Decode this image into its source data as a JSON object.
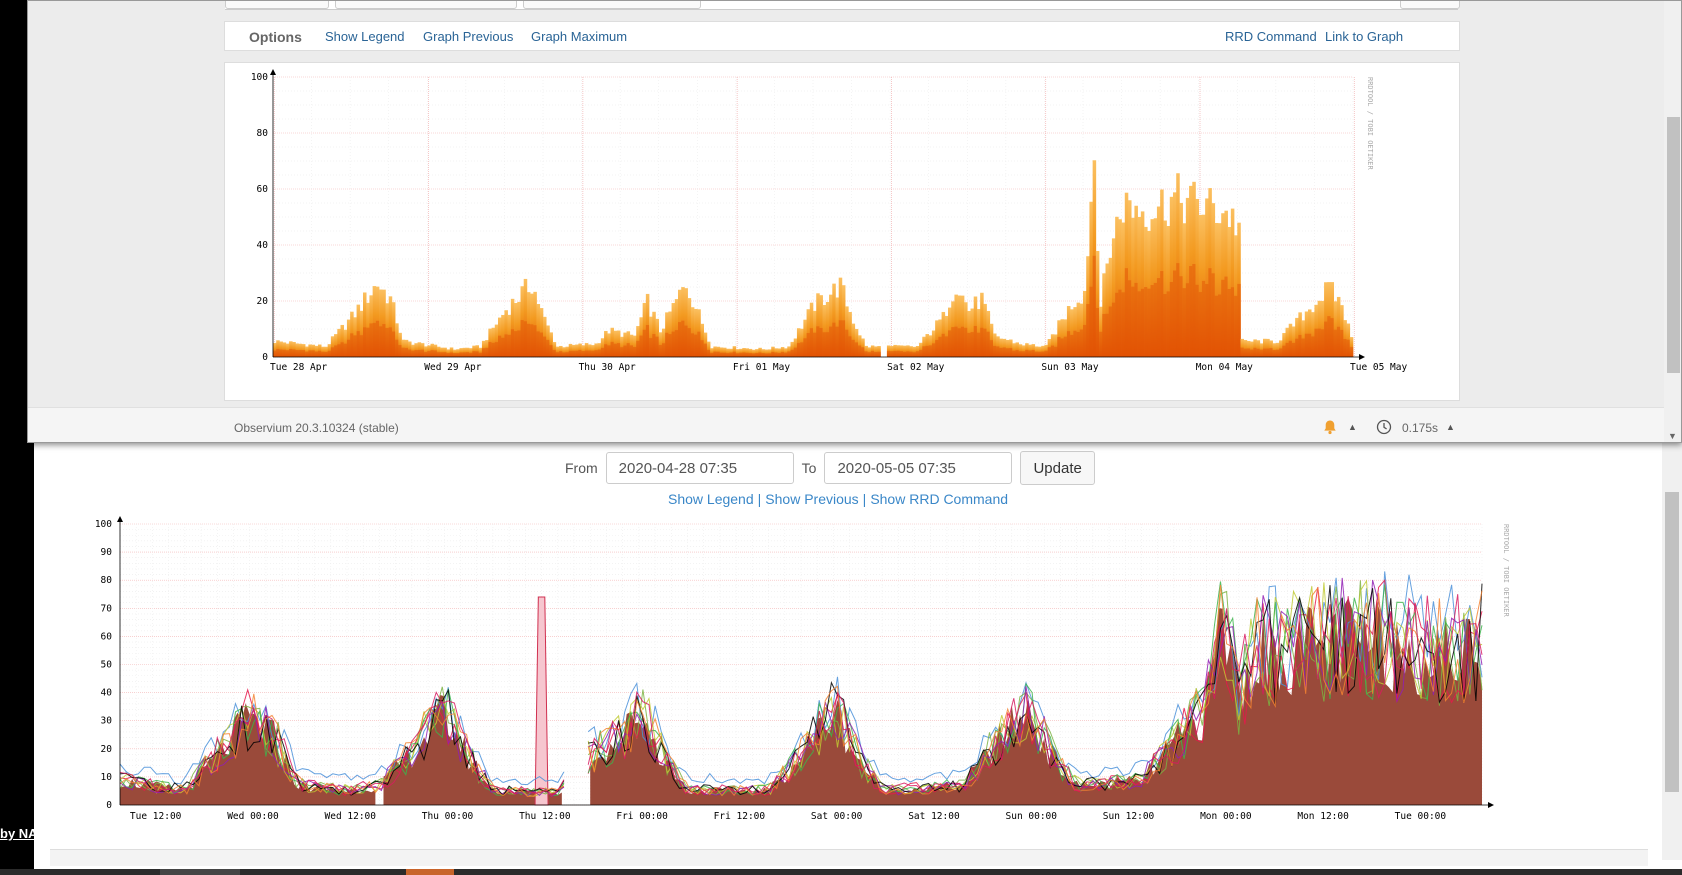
{
  "back": {
    "side_text": "by NA",
    "from_label": "From",
    "from_value": "2020-04-28 07:35",
    "to_label": "To",
    "to_value": "2020-05-05 07:35",
    "update_label": "Update",
    "links": [
      "Show Legend",
      "Show Previous",
      "Show RRD Command"
    ],
    "link_sep": "|",
    "watermark": "RRDTOOL / TOBI OETIKER"
  },
  "front": {
    "options_label": "Options",
    "links_left": [
      "Show Legend",
      "Graph Previous",
      "Graph Maximum"
    ],
    "links_right": [
      "RRD Command",
      "Link to Graph"
    ],
    "watermark": "RRDTOOL / TOBI OETIKER",
    "version": "Observium 20.3.10324 (stable)",
    "exec_time": "0.175s",
    "icons": [
      "bell-icon",
      "clock-icon"
    ]
  },
  "chart_data": [
    {
      "type": "area",
      "series_style": "stacked orange gradient",
      "ylim": [
        0,
        100
      ],
      "yticks": [
        0,
        20,
        40,
        60,
        80,
        100
      ],
      "xticks": [
        "Tue 28 Apr",
        "Wed 29 Apr",
        "Thu 30 Apr",
        "Fri 01 May",
        "Sat 02 May",
        "Sun 03 May",
        "Mon 04 May",
        "Tue 05 May"
      ],
      "day_hours_start": 7.6,
      "hours_span": 168,
      "gaps": [
        [
          94.5,
          95.0
        ]
      ],
      "values": [
        {
          "h": 0,
          "v": 6
        },
        {
          "h": 4,
          "v": 5
        },
        {
          "h": 8,
          "v": 4
        },
        {
          "h": 12,
          "v": 15
        },
        {
          "h": 16,
          "v": 28
        },
        {
          "h": 18,
          "v": 22
        },
        {
          "h": 20,
          "v": 6
        },
        {
          "h": 28,
          "v": 3
        },
        {
          "h": 32,
          "v": 4
        },
        {
          "h": 36,
          "v": 18
        },
        {
          "h": 40,
          "v": 28
        },
        {
          "h": 42,
          "v": 14
        },
        {
          "h": 44,
          "v": 4
        },
        {
          "h": 50,
          "v": 5
        },
        {
          "h": 52,
          "v": 10
        },
        {
          "h": 56,
          "v": 8
        },
        {
          "h": 58,
          "v": 21
        },
        {
          "h": 60,
          "v": 10
        },
        {
          "h": 64,
          "v": 28
        },
        {
          "h": 66,
          "v": 16
        },
        {
          "h": 68,
          "v": 4
        },
        {
          "h": 76,
          "v": 3
        },
        {
          "h": 80,
          "v": 4
        },
        {
          "h": 84,
          "v": 20
        },
        {
          "h": 88,
          "v": 27
        },
        {
          "h": 90,
          "v": 14
        },
        {
          "h": 92,
          "v": 4
        },
        {
          "h": 100,
          "v": 4
        },
        {
          "h": 104,
          "v": 15
        },
        {
          "h": 106,
          "v": 28
        },
        {
          "h": 108,
          "v": 18
        },
        {
          "h": 110,
          "v": 22
        },
        {
          "h": 112,
          "v": 8
        },
        {
          "h": 116,
          "v": 5
        },
        {
          "h": 120,
          "v": 4
        },
        {
          "h": 124,
          "v": 20
        },
        {
          "h": 126,
          "v": 25
        },
        {
          "h": 127.5,
          "v": 77
        },
        {
          "h": 128.5,
          "v": 20
        },
        {
          "h": 130,
          "v": 42
        },
        {
          "h": 132,
          "v": 58
        },
        {
          "h": 136,
          "v": 56
        },
        {
          "h": 140,
          "v": 60
        },
        {
          "h": 144,
          "v": 58
        },
        {
          "h": 148,
          "v": 55
        },
        {
          "h": 150,
          "v": 50
        },
        {
          "h": 150.5,
          "v": 6
        },
        {
          "h": 156,
          "v": 6
        },
        {
          "h": 160,
          "v": 16
        },
        {
          "h": 164,
          "v": 26
        },
        {
          "h": 166,
          "v": 20
        },
        {
          "h": 168,
          "v": 3
        }
      ]
    },
    {
      "type": "line",
      "series_style": "many overlapping colored lines over dark red area",
      "ylim": [
        0,
        100
      ],
      "yticks": [
        0,
        10,
        20,
        30,
        40,
        50,
        60,
        70,
        80,
        90,
        100
      ],
      "xticks": [
        "Tue 12:00",
        "Wed 00:00",
        "Wed 12:00",
        "Thu 00:00",
        "Thu 12:00",
        "Fri 00:00",
        "Fri 12:00",
        "Sat 00:00",
        "Sat 12:00",
        "Sun 00:00",
        "Sun 12:00",
        "Mon 00:00",
        "Mon 12:00",
        "Tue 00:00"
      ],
      "first_tick_hours": 4.4,
      "hours_span": 168,
      "gaps": [
        [
          31.6,
          32.0
        ],
        [
          55.0,
          57.5
        ]
      ],
      "spike": {
        "h_start": 51.2,
        "h_end": 52.8,
        "v": 74
      },
      "values": [
        {
          "h": 0,
          "v": 10
        },
        {
          "h": 4,
          "v": 8
        },
        {
          "h": 8,
          "v": 6
        },
        {
          "h": 12,
          "v": 20
        },
        {
          "h": 16,
          "v": 36
        },
        {
          "h": 19,
          "v": 28
        },
        {
          "h": 22,
          "v": 8
        },
        {
          "h": 28,
          "v": 6
        },
        {
          "h": 32,
          "v": 8
        },
        {
          "h": 36,
          "v": 22
        },
        {
          "h": 40,
          "v": 38
        },
        {
          "h": 43,
          "v": 20
        },
        {
          "h": 46,
          "v": 6
        },
        {
          "h": 54,
          "v": 5
        },
        {
          "h": 58,
          "v": 20
        },
        {
          "h": 62,
          "v": 28
        },
        {
          "h": 64,
          "v": 40
        },
        {
          "h": 67,
          "v": 20
        },
        {
          "h": 70,
          "v": 6
        },
        {
          "h": 80,
          "v": 6
        },
        {
          "h": 84,
          "v": 20
        },
        {
          "h": 88,
          "v": 40
        },
        {
          "h": 91,
          "v": 20
        },
        {
          "h": 94,
          "v": 6
        },
        {
          "h": 104,
          "v": 8
        },
        {
          "h": 108,
          "v": 25
        },
        {
          "h": 112,
          "v": 40
        },
        {
          "h": 115,
          "v": 20
        },
        {
          "h": 118,
          "v": 8
        },
        {
          "h": 126,
          "v": 10
        },
        {
          "h": 130,
          "v": 25
        },
        {
          "h": 134,
          "v": 40
        },
        {
          "h": 136,
          "v": 80
        },
        {
          "h": 138,
          "v": 45
        },
        {
          "h": 140,
          "v": 62
        },
        {
          "h": 146,
          "v": 65
        },
        {
          "h": 152,
          "v": 68
        },
        {
          "h": 158,
          "v": 66
        },
        {
          "h": 164,
          "v": 62
        },
        {
          "h": 168,
          "v": 66
        }
      ]
    }
  ]
}
